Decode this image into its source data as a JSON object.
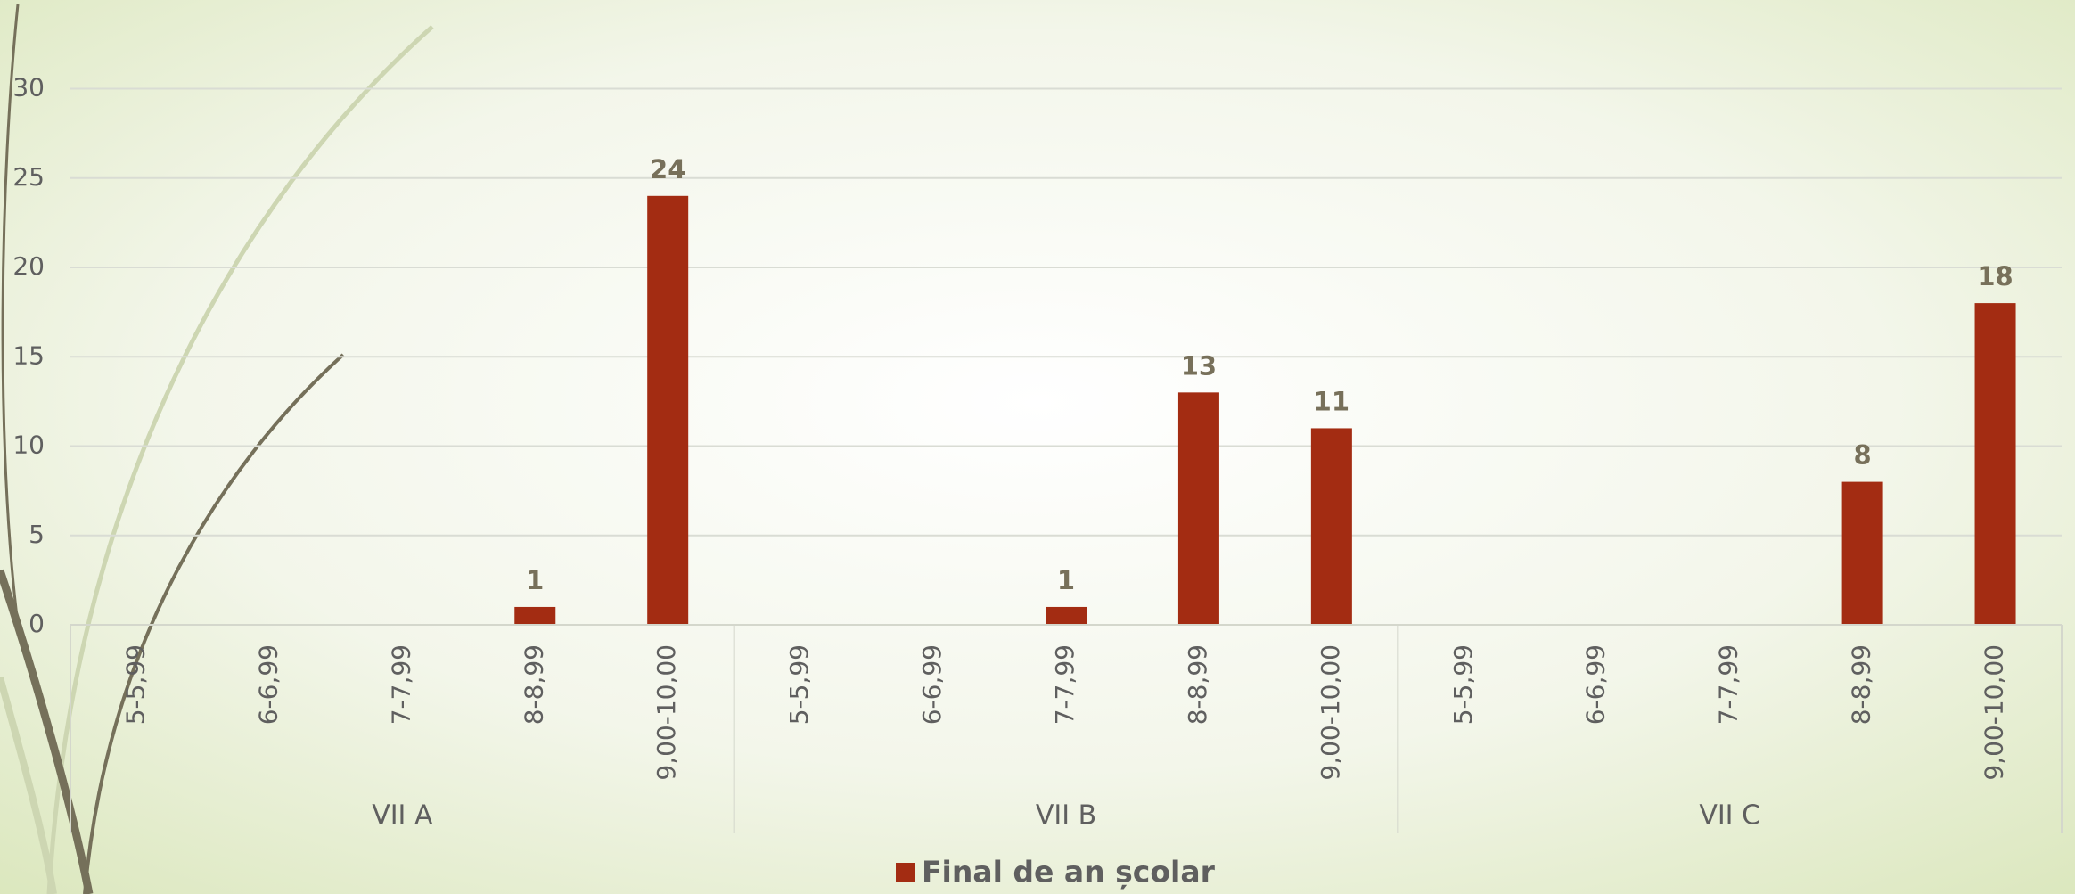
{
  "chart_data": {
    "type": "bar",
    "categories": [
      "5-5,99",
      "6-6,99",
      "7-7,99",
      "8-8,99",
      "9,00-10,00",
      "5-5,99",
      "6-6,99",
      "7-7,99",
      "8-8,99",
      "9,00-10,00",
      "5-5,99",
      "6-6,99",
      "7-7,99",
      "8-8,99",
      "9,00-10,00"
    ],
    "groups": [
      "VII A",
      "VII B",
      "VII C"
    ],
    "series": [
      {
        "name": "Final de an școlar",
        "color": "#a32c12",
        "values": [
          null,
          null,
          null,
          1,
          24,
          null,
          null,
          1,
          13,
          11,
          null,
          null,
          null,
          8,
          18
        ]
      }
    ],
    "ylim": [
      0,
      30
    ],
    "yticks": [
      0,
      5,
      10,
      15,
      20,
      25,
      30
    ],
    "grid": true,
    "legend": "bottom"
  }
}
